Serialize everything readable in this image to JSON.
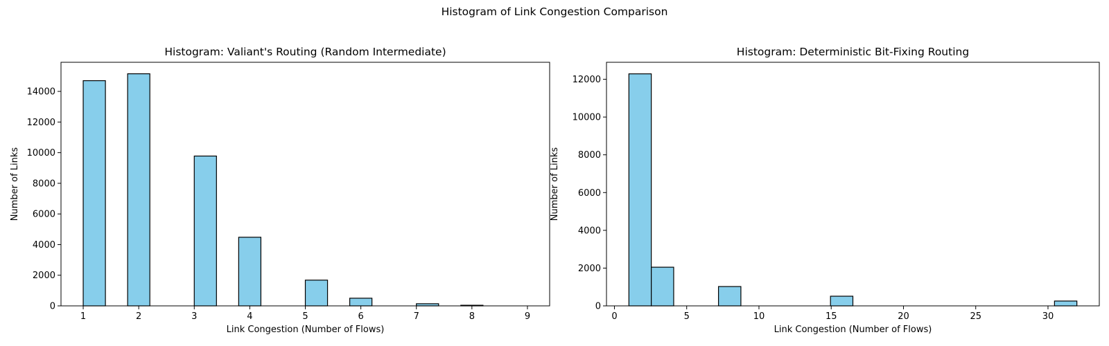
{
  "suptitle": "Histogram of Link Congestion Comparison",
  "chart_data": [
    {
      "type": "bar",
      "title": "Histogram: Valiant's Routing (Random Intermediate)",
      "xlabel": "Link Congestion (Number of Flows)",
      "ylabel": "Number of Links",
      "xlim": [
        0.6,
        9.4
      ],
      "ylim": [
        0,
        15900
      ],
      "xticks": [
        1,
        2,
        3,
        4,
        5,
        6,
        7,
        8,
        9
      ],
      "yticks": [
        0,
        2000,
        4000,
        6000,
        8000,
        10000,
        12000,
        14000
      ],
      "bins": [
        {
          "x0": 1.0,
          "x1": 1.4,
          "count": 14700
        },
        {
          "x0": 1.8,
          "x1": 2.2,
          "count": 15150
        },
        {
          "x0": 3.0,
          "x1": 3.4,
          "count": 9780
        },
        {
          "x0": 3.8,
          "x1": 4.2,
          "count": 4480
        },
        {
          "x0": 5.0,
          "x1": 5.4,
          "count": 1680
        },
        {
          "x0": 5.8,
          "x1": 6.2,
          "count": 500
        },
        {
          "x0": 7.0,
          "x1": 7.4,
          "count": 140
        },
        {
          "x0": 7.8,
          "x1": 8.2,
          "count": 40
        }
      ],
      "colors": {
        "bar": "#87ceeb",
        "edge": "#000000"
      },
      "grid": false
    },
    {
      "type": "bar",
      "title": "Histogram: Deterministic Bit-Fixing Routing",
      "xlabel": "Link Congestion (Number of Flows)",
      "ylabel": "Number of Links",
      "xlim": [
        -0.55,
        33.55
      ],
      "ylim": [
        0,
        12900
      ],
      "xticks": [
        0,
        5,
        10,
        15,
        20,
        25,
        30
      ],
      "yticks": [
        0,
        2000,
        4000,
        6000,
        8000,
        10000,
        12000
      ],
      "bins": [
        {
          "x0": 1.0,
          "x1": 2.55,
          "count": 12288
        },
        {
          "x0": 2.55,
          "x1": 4.1,
          "count": 2048
        },
        {
          "x0": 7.2,
          "x1": 8.75,
          "count": 1024
        },
        {
          "x0": 14.95,
          "x1": 16.5,
          "count": 512
        },
        {
          "x0": 30.45,
          "x1": 32.0,
          "count": 256
        }
      ],
      "colors": {
        "bar": "#87ceeb",
        "edge": "#000000"
      },
      "grid": false
    }
  ]
}
